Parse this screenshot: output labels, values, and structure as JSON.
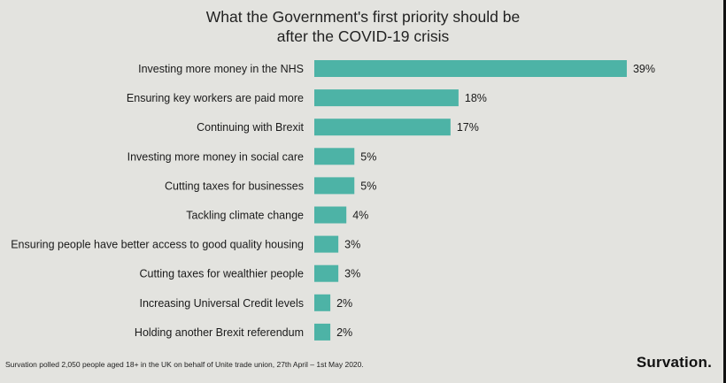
{
  "title_line1": "What the Government's first priority should be",
  "title_line2": "after the COVID-19 crisis",
  "footnote": "Survation polled 2,050 people aged 18+ in the UK on behalf of Unite trade union,  27th April  – 1st May 2020.",
  "logo": "Survation.",
  "colors": {
    "bar": "#4db3a6",
    "background": "#e3e3df"
  },
  "chart_data": {
    "type": "bar",
    "orientation": "horizontal",
    "title": "What the Government's first priority should be after the COVID-19 crisis",
    "categories": [
      "Investing more money in the NHS",
      "Ensuring key workers are paid more",
      "Continuing with Brexit",
      "Investing more money in social care",
      "Cutting taxes for businesses",
      "Tackling climate change",
      "Ensuring people have better access to good quality housing",
      "Cutting taxes for wealthier people",
      "Increasing Universal Credit levels",
      "Holding another Brexit referendum"
    ],
    "values": [
      39,
      18,
      17,
      5,
      5,
      4,
      3,
      3,
      2,
      2
    ],
    "value_labels": [
      "39%",
      "18%",
      "17%",
      "5%",
      "5%",
      "4%",
      "3%",
      "3%",
      "2%",
      "2%"
    ],
    "unit": "%",
    "xlim": [
      0,
      40
    ],
    "grid": false,
    "legend": "none"
  }
}
